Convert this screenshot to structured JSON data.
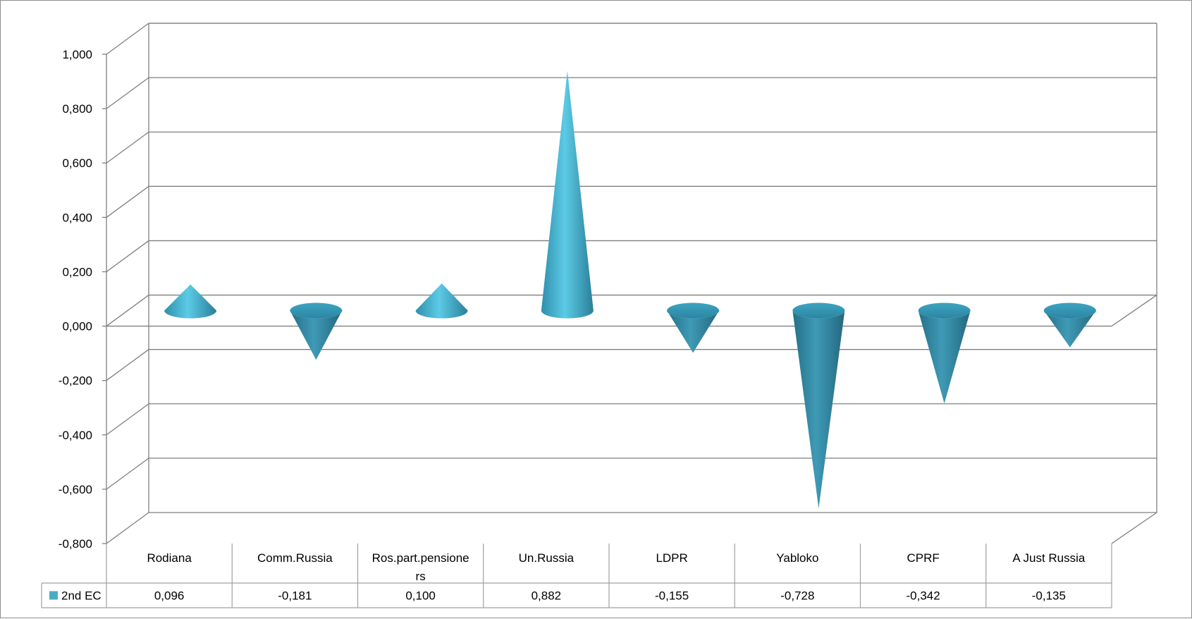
{
  "chart_data": {
    "type": "bar",
    "bar_shape": "cone",
    "three_d": true,
    "categories": [
      "Rodiana",
      "Comm.Russia",
      "Ros.part.pensione rs",
      "Un.Russia",
      "LDPR",
      "Yabloko",
      "CPRF",
      "A Just Russia"
    ],
    "category_label_lines": [
      [
        "Rodiana"
      ],
      [
        "Comm.Russia"
      ],
      [
        "Ros.part.pensione",
        "rs"
      ],
      [
        "Un.Russia"
      ],
      [
        "LDPR"
      ],
      [
        "Yabloko"
      ],
      [
        "CPRF"
      ],
      [
        "A Just Russia"
      ]
    ],
    "series": [
      {
        "name": "2nd EC",
        "values": [
          0.096,
          -0.181,
          0.1,
          0.882,
          -0.155,
          -0.728,
          -0.342,
          -0.135
        ],
        "value_labels": [
          "0,096",
          "-0,181",
          "0,100",
          "0,882",
          "-0,155",
          "-0,728",
          "-0,342",
          "-0,135"
        ],
        "color": "#4bacc6"
      }
    ],
    "yticks": [
      1.0,
      0.8,
      0.6,
      0.4,
      0.2,
      0.0,
      -0.2,
      -0.4,
      -0.6,
      -0.8
    ],
    "ytick_labels": [
      "1,000",
      "0,800",
      "0,600",
      "0,400",
      "0,200",
      "0,000",
      "-0,200",
      "-0,400",
      "-0,600",
      "-0,800"
    ],
    "ylim": [
      -0.8,
      1.0
    ],
    "grid": true,
    "data_table": true,
    "title": "",
    "xlabel": "",
    "ylabel": "",
    "colors": {
      "cone": "#4bacc6",
      "grid": "#7f7f7f",
      "table_border": "#a0a0a0"
    }
  }
}
